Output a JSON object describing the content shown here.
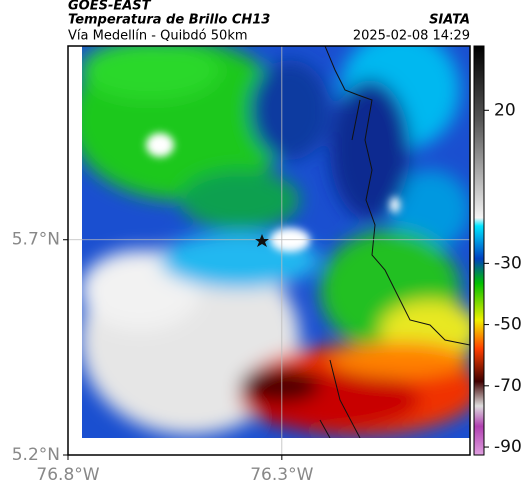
{
  "header": {
    "source": "GOES-EAST",
    "title": "Temperatura de Brillo CH13",
    "brand": "SIATA",
    "subtitle": "Vía Medellín - Quibdó 50km",
    "datetime": "2025-02-08 14:29"
  },
  "map": {
    "xlim": [
      -76.8,
      -75.86
    ],
    "ylim": [
      5.2,
      6.15
    ],
    "xticks": [
      {
        "value": -76.8,
        "label": "76.8°W"
      },
      {
        "value": -76.3,
        "label": "76.3°W"
      }
    ],
    "yticks": [
      {
        "value": 5.2,
        "label": "5.2°N"
      },
      {
        "value": 5.7,
        "label": "5.7°N"
      }
    ],
    "grid": true
  },
  "colorbar": {
    "clim": [
      -92.6,
      41
    ],
    "ticks": [
      20,
      -30,
      -50,
      -70,
      -90
    ]
  }
}
